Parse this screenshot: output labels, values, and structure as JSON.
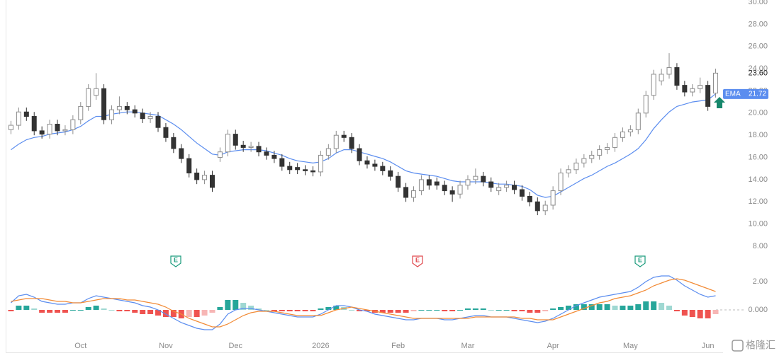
{
  "chart_data": [
    {
      "type": "candlestick",
      "open": [
        18.5,
        18.9,
        20.1,
        19.7,
        18.4,
        18.1,
        19.0,
        18.4,
        18.5,
        19.4,
        20.6,
        21.6,
        22.2,
        19.4,
        20.3,
        20.6,
        20.3,
        20.0,
        19.5,
        19.7,
        18.7,
        17.8,
        16.8,
        15.9,
        14.6,
        14.0,
        14.4,
        16.0,
        16.5,
        18.1,
        17.1,
        16.9,
        17.0,
        16.5,
        16.2,
        15.9,
        15.2,
        15.1,
        14.9,
        14.8,
        14.7,
        16.2,
        16.8,
        18.0,
        17.8,
        16.8,
        15.7,
        15.4,
        15.2,
        14.8,
        14.3,
        13.3,
        12.4,
        13.0,
        14.0,
        13.8,
        13.5,
        13.0,
        12.7,
        13.5,
        14.0,
        14.3,
        13.8,
        13.0,
        13.3,
        13.5,
        13.1,
        12.5,
        12.0,
        11.2,
        11.7,
        13.0,
        14.6,
        14.9,
        15.5,
        15.9,
        16.2,
        16.7,
        16.9,
        17.8,
        18.3,
        18.5,
        20.0,
        21.6,
        22.9,
        23.5,
        24.1,
        22.5,
        21.9,
        22.2,
        22.5,
        21.8
      ],
      "high": [
        19.3,
        20.5,
        20.5,
        20.1,
        18.8,
        19.4,
        19.4,
        18.9,
        19.8,
        21.0,
        22.6,
        23.6,
        22.6,
        20.7,
        21.5,
        21.0,
        20.7,
        20.4,
        20.1,
        20.1,
        19.1,
        18.2,
        17.2,
        16.3,
        15.0,
        14.8,
        14.8,
        16.9,
        18.5,
        18.5,
        17.5,
        17.4,
        17.4,
        16.9,
        16.6,
        16.3,
        15.6,
        15.5,
        15.3,
        15.2,
        16.6,
        17.2,
        18.4,
        18.4,
        18.2,
        17.2,
        16.1,
        15.8,
        15.6,
        15.2,
        14.7,
        13.7,
        13.4,
        14.4,
        14.4,
        14.2,
        13.9,
        13.4,
        13.9,
        14.4,
        15.0,
        14.7,
        14.2,
        13.7,
        13.9,
        13.9,
        13.5,
        12.9,
        12.4,
        12.1,
        13.4,
        15.0,
        15.3,
        15.9,
        16.3,
        16.6,
        17.1,
        17.3,
        18.2,
        18.7,
        18.9,
        20.4,
        22.0,
        23.9,
        24.0,
        25.4,
        24.5,
        22.9,
        22.6,
        23.2,
        22.9,
        24.0
      ],
      "low": [
        18.1,
        18.5,
        19.3,
        18.0,
        17.7,
        17.7,
        18.0,
        18.0,
        18.1,
        19.0,
        20.2,
        21.2,
        19.0,
        19.0,
        19.9,
        19.9,
        19.6,
        19.1,
        19.1,
        18.3,
        17.4,
        16.4,
        15.5,
        14.2,
        13.6,
        13.6,
        12.9,
        15.6,
        16.1,
        16.7,
        16.5,
        16.5,
        16.1,
        15.8,
        15.5,
        14.8,
        14.5,
        14.5,
        14.4,
        14.3,
        14.3,
        15.8,
        16.4,
        17.4,
        16.4,
        15.3,
        15.0,
        14.8,
        14.4,
        13.9,
        12.9,
        12.0,
        12.0,
        12.6,
        13.1,
        13.1,
        12.6,
        12.0,
        12.3,
        13.1,
        13.6,
        13.4,
        12.9,
        12.6,
        12.9,
        12.7,
        12.1,
        11.6,
        10.8,
        10.8,
        11.3,
        12.6,
        14.2,
        14.5,
        15.1,
        15.5,
        15.8,
        16.3,
        16.5,
        17.4,
        17.9,
        18.1,
        19.6,
        21.2,
        22.5,
        23.1,
        22.1,
        21.5,
        21.5,
        21.8,
        20.2,
        21.4
      ],
      "close": [
        18.9,
        20.1,
        19.7,
        18.4,
        18.1,
        19.0,
        18.4,
        18.5,
        19.4,
        20.6,
        22.2,
        22.2,
        19.4,
        20.3,
        20.6,
        20.3,
        20.0,
        19.5,
        19.7,
        18.7,
        17.8,
        16.8,
        15.9,
        14.6,
        14.0,
        14.4,
        13.3,
        16.5,
        18.1,
        17.1,
        16.9,
        17.0,
        16.5,
        16.2,
        15.9,
        15.2,
        14.9,
        14.9,
        14.8,
        14.7,
        16.2,
        16.8,
        18.0,
        17.8,
        16.8,
        15.7,
        15.4,
        15.2,
        14.8,
        14.3,
        13.3,
        12.4,
        13.0,
        14.0,
        13.5,
        13.5,
        13.0,
        12.7,
        13.5,
        14.0,
        14.3,
        13.8,
        13.3,
        13.3,
        13.5,
        13.1,
        12.5,
        12.0,
        11.2,
        11.7,
        13.0,
        14.6,
        14.9,
        15.5,
        15.9,
        16.2,
        16.7,
        16.9,
        17.8,
        18.3,
        18.5,
        20.0,
        21.6,
        23.5,
        23.5,
        24.1,
        22.5,
        21.9,
        22.2,
        22.5,
        20.6,
        23.6
      ],
      "up_color": "#8c8c8c",
      "down_color": "#333333",
      "series": [
        {
          "name": "EMA",
          "color": "#5b8def",
          "values": [
            16.7,
            17.2,
            17.6,
            17.8,
            17.9,
            18.1,
            18.2,
            18.3,
            18.5,
            18.8,
            19.3,
            19.7,
            19.7,
            19.9,
            20.0,
            20.1,
            20.1,
            20.0,
            19.9,
            19.8,
            19.4,
            19.0,
            18.5,
            17.9,
            17.3,
            16.8,
            16.3,
            16.2,
            16.5,
            16.6,
            16.7,
            16.7,
            16.7,
            16.6,
            16.4,
            16.2,
            15.9,
            15.7,
            15.6,
            15.5,
            15.6,
            15.9,
            16.4,
            16.7,
            16.7,
            16.5,
            16.3,
            16.1,
            15.9,
            15.6,
            15.2,
            14.8,
            14.6,
            14.5,
            14.4,
            14.3,
            14.1,
            13.9,
            13.8,
            13.8,
            13.8,
            13.8,
            13.7,
            13.6,
            13.6,
            13.5,
            13.4,
            13.1,
            12.6,
            12.4,
            12.5,
            12.9,
            13.3,
            13.7,
            14.1,
            14.4,
            14.8,
            15.2,
            15.5,
            15.9,
            16.3,
            16.8,
            17.6,
            18.6,
            19.4,
            20.1,
            20.6,
            20.8,
            21.0,
            21.1,
            21.2,
            21.72
          ]
        }
      ],
      "last_price": {
        "value": 23.6,
        "label": "23.60"
      },
      "earnings_markers": [
        {
          "label": "E",
          "color": "#1a9b7c"
        },
        {
          "label": "E",
          "color": "#e0474c"
        },
        {
          "label": "E",
          "color": "#1a9b7c"
        }
      ],
      "xlim": [
        -0.5,
        91.5
      ],
      "ylim": [
        8,
        30
      ],
      "yticks": [
        {
          "value": 8,
          "label": "8.00"
        },
        {
          "value": 10,
          "label": "10.00"
        },
        {
          "value": 12,
          "label": "12.00"
        },
        {
          "value": 14,
          "label": "14.00"
        },
        {
          "value": 16,
          "label": "16.00"
        },
        {
          "value": 18,
          "label": "18.00"
        },
        {
          "value": 20,
          "label": "20.00"
        },
        {
          "value": 22,
          "label": "22.00"
        },
        {
          "value": 24,
          "label": "24.00"
        },
        {
          "value": 26,
          "label": "26.00"
        },
        {
          "value": 28,
          "label": "28.00"
        },
        {
          "value": 30,
          "label": "30.00"
        }
      ]
    },
    {
      "type": "macd",
      "series": [
        {
          "color": "#5b8def",
          "values": [
            0.5,
            1.0,
            1.1,
            0.9,
            0.6,
            0.5,
            0.4,
            0.4,
            0.5,
            0.5,
            0.8,
            1.0,
            0.9,
            0.8,
            0.7,
            0.6,
            0.5,
            0.3,
            0.2,
            0.0,
            -0.3,
            -0.6,
            -0.9,
            -1.1,
            -1.3,
            -1.4,
            -1.4,
            -1.0,
            -0.3,
            0.0,
            0.1,
            0.1,
            0.0,
            -0.1,
            -0.2,
            -0.3,
            -0.4,
            -0.5,
            -0.5,
            -0.5,
            -0.3,
            0.0,
            0.3,
            0.3,
            0.2,
            0.0,
            -0.1,
            -0.3,
            -0.4,
            -0.5,
            -0.6,
            -0.7,
            -0.7,
            -0.6,
            -0.6,
            -0.6,
            -0.7,
            -0.7,
            -0.6,
            -0.5,
            -0.4,
            -0.4,
            -0.5,
            -0.5,
            -0.5,
            -0.6,
            -0.7,
            -0.8,
            -0.9,
            -0.8,
            -0.6,
            -0.3,
            0.0,
            0.3,
            0.5,
            0.7,
            0.9,
            1.0,
            1.1,
            1.2,
            1.3,
            1.6,
            2.0,
            2.3,
            2.4,
            2.4,
            2.1,
            1.7,
            1.4,
            1.1,
            0.9,
            1.0
          ]
        },
        {
          "color": "#f28b36",
          "values": [
            0.6,
            0.7,
            0.8,
            0.8,
            0.8,
            0.7,
            0.6,
            0.6,
            0.5,
            0.5,
            0.6,
            0.7,
            0.8,
            0.8,
            0.8,
            0.7,
            0.7,
            0.6,
            0.5,
            0.4,
            0.2,
            -0.1,
            -0.3,
            -0.6,
            -0.8,
            -1.0,
            -1.2,
            -1.2,
            -1.0,
            -0.7,
            -0.4,
            -0.2,
            -0.1,
            -0.1,
            -0.1,
            -0.2,
            -0.3,
            -0.4,
            -0.4,
            -0.4,
            -0.4,
            -0.2,
            0.0,
            0.1,
            0.2,
            0.1,
            0.0,
            -0.1,
            -0.2,
            -0.3,
            -0.4,
            -0.5,
            -0.6,
            -0.6,
            -0.6,
            -0.6,
            -0.6,
            -0.6,
            -0.6,
            -0.6,
            -0.5,
            -0.5,
            -0.5,
            -0.5,
            -0.5,
            -0.5,
            -0.6,
            -0.6,
            -0.7,
            -0.7,
            -0.7,
            -0.5,
            -0.3,
            -0.1,
            0.1,
            0.3,
            0.5,
            0.6,
            0.8,
            0.9,
            1.0,
            1.2,
            1.4,
            1.7,
            1.9,
            2.1,
            2.2,
            2.1,
            1.9,
            1.7,
            1.5,
            1.3
          ]
        }
      ],
      "histogram": {
        "up_color": "#26a69a",
        "up_light_color": "#9fd8d2",
        "down_color": "#ef5350",
        "down_light_color": "#f7b6b5",
        "values": [
          -0.1,
          0.3,
          0.3,
          0.1,
          -0.2,
          -0.2,
          -0.2,
          -0.2,
          0.0,
          0.0,
          0.2,
          0.3,
          0.1,
          0.0,
          -0.1,
          -0.1,
          -0.2,
          -0.3,
          -0.3,
          -0.4,
          -0.5,
          -0.5,
          -0.6,
          -0.5,
          -0.5,
          -0.4,
          -0.2,
          0.2,
          0.7,
          0.7,
          0.5,
          0.3,
          0.1,
          0.0,
          -0.1,
          -0.1,
          -0.1,
          -0.1,
          -0.1,
          -0.1,
          0.1,
          0.2,
          0.3,
          0.2,
          0.0,
          -0.1,
          -0.1,
          -0.2,
          -0.2,
          -0.2,
          -0.2,
          -0.2,
          -0.1,
          0.0,
          0.0,
          0.0,
          -0.1,
          -0.1,
          0.0,
          0.1,
          0.1,
          0.1,
          0.0,
          0.0,
          0.0,
          -0.1,
          -0.1,
          -0.2,
          -0.2,
          -0.1,
          0.1,
          0.2,
          0.3,
          0.4,
          0.4,
          0.4,
          0.4,
          0.4,
          0.3,
          0.3,
          0.3,
          0.4,
          0.6,
          0.6,
          0.5,
          0.3,
          -0.1,
          -0.4,
          -0.5,
          -0.6,
          -0.6,
          -0.3
        ]
      },
      "xlim": [
        -0.5,
        91.5
      ],
      "ylim": [
        -2,
        2.5
      ],
      "yticks": [
        {
          "value": 0,
          "label": "0.000"
        },
        {
          "value": 2,
          "label": "2.00"
        }
      ],
      "xticks": [
        {
          "value": 9,
          "label": "Oct"
        },
        {
          "value": 20,
          "label": "Nov"
        },
        {
          "value": 29,
          "label": "Dec"
        },
        {
          "value": 40,
          "label": "2026"
        },
        {
          "value": 50,
          "label": "Feb"
        },
        {
          "value": 59,
          "label": "Mar"
        },
        {
          "value": 70,
          "label": "Apr"
        },
        {
          "value": 80,
          "label": "May"
        },
        {
          "value": 90,
          "label": "Jun"
        }
      ]
    }
  ],
  "watermark": "格隆汇"
}
